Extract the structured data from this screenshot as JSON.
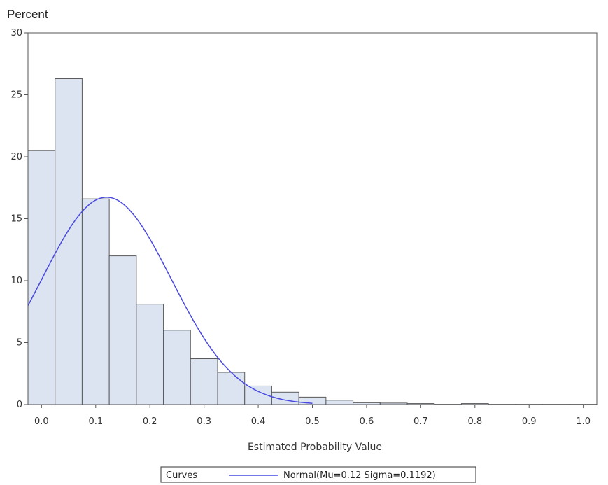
{
  "chart_data": {
    "type": "bar",
    "ylabel": "Percent",
    "xlabel": "Estimated Probability Value",
    "xlim": [
      -0.025,
      1.025
    ],
    "ylim": [
      0,
      30
    ],
    "xticks": [
      0.0,
      0.1,
      0.2,
      0.3,
      0.4,
      0.5,
      0.6,
      0.7,
      0.8,
      0.9,
      1.0
    ],
    "xtick_labels": [
      "0.0",
      "0.1",
      "0.2",
      "0.3",
      "0.4",
      "0.5",
      "0.6",
      "0.7",
      "0.8",
      "0.9",
      "1.0"
    ],
    "yticks": [
      0,
      5,
      10,
      15,
      20,
      25,
      30
    ],
    "ytick_labels": [
      "0",
      "5",
      "10",
      "15",
      "20",
      "25",
      "30"
    ],
    "bin_width": 0.05,
    "bins": [
      {
        "x0": -0.025,
        "value": 20.5
      },
      {
        "x0": 0.025,
        "value": 26.3
      },
      {
        "x0": 0.075,
        "value": 16.6
      },
      {
        "x0": 0.125,
        "value": 12.0
      },
      {
        "x0": 0.175,
        "value": 8.1
      },
      {
        "x0": 0.225,
        "value": 6.0
      },
      {
        "x0": 0.275,
        "value": 3.7
      },
      {
        "x0": 0.325,
        "value": 2.6
      },
      {
        "x0": 0.375,
        "value": 1.5
      },
      {
        "x0": 0.425,
        "value": 1.0
      },
      {
        "x0": 0.475,
        "value": 0.6
      },
      {
        "x0": 0.525,
        "value": 0.35
      },
      {
        "x0": 0.575,
        "value": 0.15
      },
      {
        "x0": 0.625,
        "value": 0.12
      },
      {
        "x0": 0.675,
        "value": 0.08
      },
      {
        "x0": 0.725,
        "value": 0.02
      },
      {
        "x0": 0.775,
        "value": 0.08
      },
      {
        "x0": 0.825,
        "value": 0.02
      },
      {
        "x0": 0.875,
        "value": 0.02
      },
      {
        "x0": 0.925,
        "value": 0.02
      },
      {
        "x0": 0.975,
        "value": 0.02
      }
    ],
    "curve": {
      "name": "Normal(Mu=0.12 Sigma=0.1192)",
      "mu": 0.12,
      "sigma": 0.1192,
      "x_range": [
        -0.025,
        0.5
      ]
    },
    "legend": {
      "title": "Curves",
      "entry": "Normal(Mu=0.12 Sigma=0.1192)",
      "placement": "bottom-center"
    },
    "colors": {
      "bar_fill": "#dbe4f0",
      "bar_stroke": "#5a5a5a",
      "curve": "#4a4ae0",
      "axis": "#555555"
    }
  }
}
